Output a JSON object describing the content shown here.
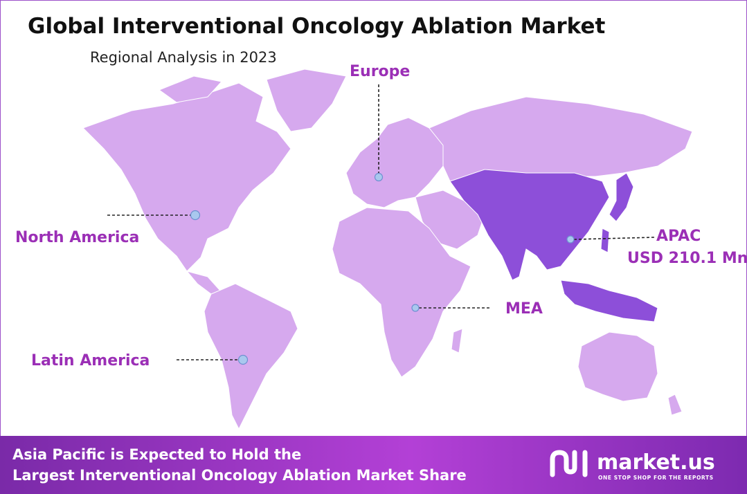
{
  "header": {
    "title": "Global Interventional Oncology Ablation Market",
    "subtitle": "Regional Analysis in 2023"
  },
  "regions": [
    {
      "label": "Europe"
    },
    {
      "label": "North America"
    },
    {
      "label": "Latin America"
    },
    {
      "label": "MEA"
    },
    {
      "label": "APAC",
      "value_label": "USD 210.1 Mn"
    }
  ],
  "footer": {
    "lines": [
      "Asia Pacific is Expected to Hold the",
      "Largest Interventional Oncology Ablation Market Share"
    ]
  },
  "logo": {
    "name": "market.us",
    "tagline": "ONE STOP SHOP FOR THE REPORTS"
  }
}
